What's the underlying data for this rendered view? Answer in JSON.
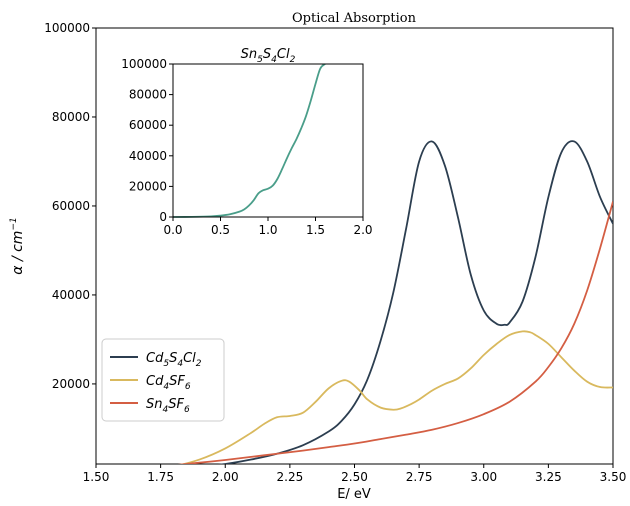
{
  "chart_data": [
    {
      "type": "line",
      "title": "Optical Absorption",
      "xlabel": "E/ eV",
      "ylabel": "α / cm⁻¹",
      "xlim": [
        1.5,
        3.5
      ],
      "ylim": [
        2000,
        100000
      ],
      "xticks": [
        "1.50",
        "1.75",
        "2.00",
        "2.25",
        "2.50",
        "2.75",
        "3.00",
        "3.25",
        "3.50"
      ],
      "yticks": [
        "20000",
        "40000",
        "60000",
        "80000",
        "100000"
      ],
      "grid": false,
      "legend_position": "lower-left",
      "series": [
        {
          "name": "Cd5S4Cl2",
          "color": "#2c3e50",
          "x": [
            1.5,
            1.6,
            1.7,
            1.8,
            1.9,
            2.0,
            2.1,
            2.2,
            2.3,
            2.4,
            2.45,
            2.5,
            2.55,
            2.6,
            2.65,
            2.7,
            2.75,
            2.8,
            2.85,
            2.9,
            2.95,
            3.0,
            3.05,
            3.08,
            3.1,
            3.15,
            3.2,
            3.25,
            3.3,
            3.35,
            3.4,
            3.45,
            3.5
          ],
          "y": [
            200,
            350,
            600,
            900,
            1400,
            2000,
            3000,
            4300,
            6200,
            9300,
            11700,
            15400,
            21000,
            29500,
            40500,
            55000,
            70000,
            74500,
            69000,
            57500,
            44500,
            36500,
            33500,
            33300,
            33800,
            38500,
            48500,
            62000,
            72000,
            74500,
            70000,
            62000,
            56000
          ]
        },
        {
          "name": "Cd4SF6",
          "color": "#d9b95e",
          "x": [
            1.5,
            1.6,
            1.7,
            1.8,
            1.9,
            2.0,
            2.1,
            2.15,
            2.2,
            2.25,
            2.3,
            2.35,
            2.4,
            2.45,
            2.48,
            2.52,
            2.55,
            2.6,
            2.65,
            2.68,
            2.72,
            2.75,
            2.8,
            2.85,
            2.9,
            2.95,
            3.0,
            3.05,
            3.1,
            3.15,
            3.18,
            3.2,
            3.25,
            3.3,
            3.35,
            3.4,
            3.45,
            3.5
          ],
          "y": [
            200,
            400,
            800,
            1500,
            3000,
            5500,
            9000,
            11000,
            12500,
            12800,
            13500,
            16000,
            19000,
            20700,
            20500,
            18500,
            16500,
            14700,
            14200,
            14500,
            15500,
            16500,
            18500,
            20000,
            21200,
            23500,
            26500,
            29000,
            31000,
            31800,
            31600,
            31000,
            29000,
            26000,
            23000,
            20500,
            19300,
            19200
          ]
        },
        {
          "name": "Sn4SF6",
          "color": "#d45e43",
          "x": [
            1.5,
            1.6,
            1.7,
            1.8,
            1.9,
            2.0,
            2.1,
            2.2,
            2.3,
            2.4,
            2.5,
            2.6,
            2.7,
            2.8,
            2.9,
            3.0,
            3.1,
            3.2,
            3.25,
            3.3,
            3.35,
            3.4,
            3.45,
            3.5
          ],
          "y": [
            400,
            800,
            1200,
            1700,
            2300,
            2900,
            3600,
            4300,
            5000,
            5800,
            6600,
            7600,
            8600,
            9700,
            11200,
            13200,
            16000,
            20500,
            23800,
            28000,
            33500,
            41000,
            50500,
            61000
          ]
        }
      ]
    },
    {
      "type": "line",
      "title": "Sn5S4Cl2",
      "xlim": [
        0.0,
        2.0
      ],
      "ylim": [
        0,
        100000
      ],
      "xticks": [
        "0.0",
        "0.5",
        "1.0",
        "1.5",
        "2.0"
      ],
      "yticks": [
        "0",
        "20000",
        "40000",
        "60000",
        "80000",
        "100000"
      ],
      "series": [
        {
          "color": "#4a9e8a",
          "x": [
            0.0,
            0.2,
            0.4,
            0.5,
            0.6,
            0.7,
            0.75,
            0.8,
            0.85,
            0.9,
            0.95,
            1.0,
            1.05,
            1.1,
            1.15,
            1.2,
            1.25,
            1.3,
            1.35,
            1.4,
            1.45,
            1.5,
            1.55,
            1.6
          ],
          "y": [
            0,
            100,
            400,
            900,
            1800,
            3500,
            5000,
            7500,
            11000,
            15500,
            17500,
            18500,
            20500,
            25000,
            31500,
            38500,
            45000,
            51000,
            58000,
            66000,
            76000,
            87000,
            97000,
            100000
          ]
        }
      ]
    }
  ],
  "labels": {
    "title": "Optical Absorption",
    "xlabel": "E/ eV",
    "ylabel_main": "α / cm",
    "ylabel_sup": "−1",
    "inset_title_main": "Sn",
    "legend": [
      {
        "base": "Cd",
        "parts": [
          [
            "5",
            "S"
          ],
          [
            "4",
            "Cl"
          ],
          [
            "2",
            ""
          ]
        ]
      },
      {
        "base": "Cd",
        "parts": [
          [
            "4",
            "SF"
          ],
          [
            "6",
            ""
          ]
        ]
      },
      {
        "base": "Sn",
        "parts": [
          [
            "4",
            "SF"
          ],
          [
            "6",
            ""
          ]
        ]
      }
    ]
  }
}
